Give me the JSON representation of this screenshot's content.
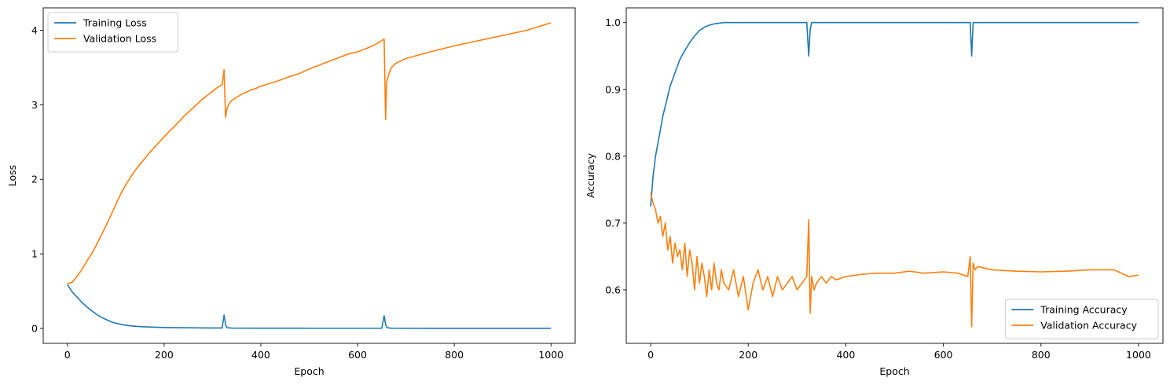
{
  "colors": {
    "training": "#1f77b4",
    "validation": "#ff7f0e"
  },
  "chart_data": [
    {
      "type": "line",
      "xlabel": "Epoch",
      "ylabel": "Loss",
      "xlim": [
        -50,
        1050
      ],
      "ylim": [
        -0.2,
        4.3
      ],
      "xticks": [
        0,
        200,
        400,
        600,
        800,
        1000
      ],
      "yticks": [
        0,
        1,
        2,
        3,
        4
      ],
      "legend": "top-left",
      "series": [
        {
          "name": "Training Loss",
          "x": [
            0,
            10,
            20,
            30,
            40,
            50,
            60,
            70,
            80,
            90,
            100,
            115,
            130,
            150,
            175,
            200,
            250,
            300,
            320,
            324,
            327,
            330,
            340,
            400,
            500,
            600,
            650,
            655,
            658,
            661,
            670,
            750,
            850,
            1000
          ],
          "y": [
            0.59,
            0.49,
            0.42,
            0.35,
            0.29,
            0.24,
            0.19,
            0.15,
            0.12,
            0.09,
            0.07,
            0.05,
            0.035,
            0.025,
            0.018,
            0.013,
            0.009,
            0.006,
            0.006,
            0.18,
            0.05,
            0.01,
            0.005,
            0.004,
            0.003,
            0.003,
            0.003,
            0.17,
            0.05,
            0.01,
            0.003,
            0.002,
            0.002,
            0.002
          ]
        },
        {
          "name": "Validation Loss",
          "x": [
            0,
            10,
            20,
            30,
            40,
            50,
            60,
            70,
            80,
            90,
            100,
            110,
            120,
            130,
            140,
            150,
            160,
            170,
            180,
            190,
            200,
            210,
            220,
            230,
            240,
            250,
            260,
            270,
            280,
            290,
            300,
            310,
            320,
            324,
            327,
            330,
            335,
            340,
            350,
            360,
            370,
            380,
            390,
            400,
            420,
            440,
            460,
            480,
            500,
            520,
            540,
            560,
            580,
            600,
            620,
            640,
            650,
            655,
            658,
            660,
            665,
            670,
            680,
            700,
            750,
            800,
            850,
            900,
            950,
            1000
          ],
          "y": [
            0.6,
            0.62,
            0.7,
            0.79,
            0.9,
            1.0,
            1.12,
            1.25,
            1.38,
            1.52,
            1.66,
            1.8,
            1.92,
            2.02,
            2.12,
            2.2,
            2.28,
            2.36,
            2.43,
            2.5,
            2.57,
            2.64,
            2.7,
            2.77,
            2.84,
            2.9,
            2.96,
            3.02,
            3.08,
            3.13,
            3.18,
            3.23,
            3.27,
            3.47,
            2.83,
            2.95,
            3.02,
            3.06,
            3.1,
            3.14,
            3.17,
            3.2,
            3.22,
            3.25,
            3.29,
            3.33,
            3.38,
            3.42,
            3.48,
            3.53,
            3.58,
            3.63,
            3.68,
            3.71,
            3.76,
            3.82,
            3.86,
            3.88,
            2.8,
            3.3,
            3.42,
            3.5,
            3.56,
            3.62,
            3.71,
            3.79,
            3.86,
            3.93,
            4.0,
            4.1
          ]
        }
      ]
    },
    {
      "type": "line",
      "xlabel": "Epoch",
      "ylabel": "Accuracy",
      "xlim": [
        -50,
        1050
      ],
      "ylim": [
        0.52,
        1.022
      ],
      "xticks": [
        0,
        200,
        400,
        600,
        800,
        1000
      ],
      "yticks": [
        0.6,
        0.7,
        0.8,
        0.9,
        1.0
      ],
      "legend": "bottom-right",
      "series": [
        {
          "name": "Training Accuracy",
          "x": [
            0,
            5,
            10,
            15,
            20,
            25,
            30,
            35,
            40,
            45,
            50,
            60,
            70,
            80,
            90,
            100,
            110,
            120,
            130,
            140,
            150,
            170,
            200,
            250,
            300,
            320,
            324,
            327,
            330,
            340,
            400,
            500,
            600,
            650,
            655,
            658,
            661,
            670,
            800,
            1000
          ],
          "y": [
            0.725,
            0.77,
            0.8,
            0.82,
            0.84,
            0.86,
            0.875,
            0.89,
            0.905,
            0.915,
            0.925,
            0.945,
            0.958,
            0.97,
            0.98,
            0.988,
            0.993,
            0.996,
            0.998,
            0.999,
            1.0,
            1.0,
            1.0,
            1.0,
            1.0,
            1.0,
            0.95,
            0.99,
            1.0,
            1.0,
            1.0,
            1.0,
            1.0,
            1.0,
            1.0,
            0.95,
            1.0,
            1.0,
            1.0,
            1.0
          ]
        },
        {
          "name": "Validation Accuracy",
          "x": [
            0,
            5,
            10,
            15,
            20,
            25,
            30,
            35,
            40,
            45,
            50,
            55,
            60,
            65,
            70,
            75,
            80,
            85,
            90,
            95,
            100,
            105,
            110,
            115,
            120,
            125,
            130,
            135,
            140,
            145,
            150,
            160,
            170,
            180,
            190,
            200,
            210,
            220,
            230,
            240,
            250,
            260,
            270,
            280,
            290,
            300,
            310,
            320,
            324,
            327,
            330,
            335,
            340,
            350,
            360,
            370,
            380,
            400,
            430,
            460,
            500,
            530,
            560,
            600,
            630,
            650,
            655,
            658,
            661,
            665,
            670,
            700,
            750,
            800,
            850,
            900,
            950,
            980,
            1000
          ],
          "y": [
            0.745,
            0.73,
            0.72,
            0.7,
            0.71,
            0.68,
            0.7,
            0.66,
            0.68,
            0.64,
            0.67,
            0.65,
            0.66,
            0.63,
            0.67,
            0.62,
            0.66,
            0.64,
            0.6,
            0.65,
            0.61,
            0.64,
            0.62,
            0.59,
            0.63,
            0.6,
            0.64,
            0.61,
            0.6,
            0.63,
            0.61,
            0.6,
            0.63,
            0.59,
            0.62,
            0.57,
            0.61,
            0.63,
            0.6,
            0.62,
            0.59,
            0.62,
            0.6,
            0.61,
            0.62,
            0.6,
            0.61,
            0.62,
            0.705,
            0.565,
            0.62,
            0.6,
            0.61,
            0.62,
            0.61,
            0.62,
            0.615,
            0.62,
            0.623,
            0.625,
            0.625,
            0.628,
            0.625,
            0.627,
            0.625,
            0.62,
            0.65,
            0.545,
            0.64,
            0.63,
            0.635,
            0.63,
            0.628,
            0.627,
            0.628,
            0.63,
            0.63,
            0.62,
            0.622
          ]
        }
      ]
    }
  ]
}
